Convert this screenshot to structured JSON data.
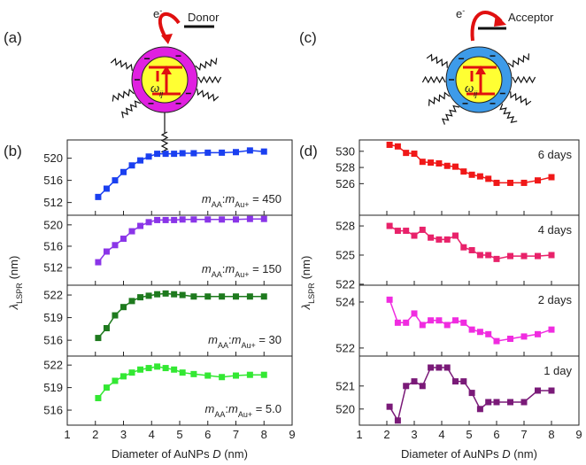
{
  "panel_labels": [
    "(a)",
    "(b)",
    "(c)",
    "(d)"
  ],
  "schematics": {
    "electron": "e",
    "charge": "-",
    "donor": "Donor",
    "acceptor": "Acceptor",
    "freq": "ω",
    "freq_sub": "ij"
  },
  "chart_data": [
    {
      "type": "line",
      "xlabel": [
        "Diameter of AuNPs ",
        "D",
        " (nm)"
      ],
      "ylabel": [
        "λ",
        "LSPR",
        "(nm)"
      ],
      "xlim": [
        1,
        9
      ],
      "xticks": [
        1,
        2,
        3,
        4,
        5,
        6,
        7,
        8,
        9
      ],
      "subplots": [
        {
          "x": [
            2.1,
            2.4,
            2.7,
            3.0,
            3.3,
            3.6,
            3.9,
            4.2,
            4.5,
            4.8,
            5.1,
            5.5,
            6.0,
            6.5,
            7.0,
            7.5,
            8.0
          ],
          "values": [
            513.0,
            514.5,
            516.0,
            517.5,
            518.7,
            519.6,
            520.3,
            520.8,
            520.8,
            520.8,
            520.9,
            520.9,
            521.0,
            521.0,
            521.1,
            521.4,
            521.2
          ],
          "color": "#1a3ff0",
          "ylim": [
            509.7,
            523.3
          ],
          "yticks": [
            512,
            516,
            520
          ],
          "annotation": [
            "m",
            "AA",
            ":",
            "m",
            "Au+",
            " = 450"
          ]
        },
        {
          "x": [
            2.1,
            2.4,
            2.7,
            3.0,
            3.3,
            3.6,
            3.9,
            4.2,
            4.5,
            4.8,
            5.1,
            5.5,
            6.0,
            6.5,
            7.0,
            7.5,
            8.0
          ],
          "values": [
            513.0,
            515.0,
            516.2,
            517.4,
            518.8,
            519.8,
            520.5,
            520.9,
            520.9,
            520.9,
            521.0,
            521.0,
            521.0,
            521.0,
            521.0,
            521.1,
            521.1
          ],
          "color": "#8a35e8",
          "ylim": [
            508.7,
            521.8
          ],
          "yticks": [
            512,
            516,
            520
          ],
          "annotation": [
            "m",
            "AA",
            ":",
            "m",
            "Au+",
            " = 150"
          ]
        },
        {
          "x": [
            2.1,
            2.4,
            2.7,
            3.0,
            3.3,
            3.6,
            3.9,
            4.2,
            4.5,
            4.8,
            5.1,
            5.5,
            6.0,
            6.5,
            7.0,
            7.5,
            8.0
          ],
          "values": [
            516.3,
            517.6,
            519.3,
            520.4,
            521.2,
            521.7,
            521.9,
            522.1,
            522.2,
            522.1,
            522.0,
            521.8,
            521.8,
            521.8,
            521.8,
            521.8,
            521.8
          ],
          "color": "#1e7a1e",
          "ylim": [
            513.9,
            523.3
          ],
          "yticks": [
            516,
            519,
            522
          ],
          "annotation": [
            "m",
            "AA",
            ":",
            "m",
            "Au+",
            " = 30"
          ]
        },
        {
          "x": [
            2.1,
            2.4,
            2.7,
            3.0,
            3.3,
            3.6,
            3.9,
            4.2,
            4.5,
            4.8,
            5.1,
            5.5,
            6.0,
            6.5,
            7.0,
            7.5,
            8.0
          ],
          "values": [
            517.6,
            519.0,
            519.9,
            520.5,
            521.0,
            521.4,
            521.6,
            521.8,
            521.6,
            521.4,
            521.0,
            520.8,
            520.6,
            520.4,
            520.6,
            520.7,
            520.7
          ],
          "color": "#33e833",
          "ylim": [
            514.0,
            523.2
          ],
          "yticks": [
            516,
            519,
            522
          ],
          "annotation": [
            "m",
            "AA",
            ":",
            "m",
            "Au+",
            " = 5.0"
          ]
        }
      ]
    },
    {
      "type": "line",
      "xlabel": [
        "Diameter of AuNPs ",
        "D",
        " (nm)"
      ],
      "ylabel": [
        "λ",
        "LSPR",
        "(nm)"
      ],
      "xlim": [
        1,
        9
      ],
      "xticks": [
        1,
        2,
        3,
        4,
        5,
        6,
        7,
        8,
        9
      ],
      "subplots": [
        {
          "x": [
            2.1,
            2.4,
            2.7,
            3.0,
            3.3,
            3.6,
            3.9,
            4.2,
            4.5,
            4.8,
            5.1,
            5.4,
            5.7,
            6.0,
            6.5,
            7.0,
            7.5,
            8.0
          ],
          "values": [
            530.8,
            530.6,
            529.8,
            529.7,
            528.7,
            528.6,
            528.5,
            528.2,
            528.1,
            527.5,
            527.1,
            526.9,
            526.6,
            526.1,
            526.1,
            526.1,
            526.4,
            526.8
          ],
          "color": "#f01818",
          "ylim": [
            522.1,
            531.4
          ],
          "yticks": [
            526,
            528,
            530
          ],
          "annotation": [
            "6 days"
          ]
        },
        {
          "x": [
            2.1,
            2.4,
            2.7,
            3.0,
            3.3,
            3.6,
            3.9,
            4.2,
            4.5,
            4.8,
            5.1,
            5.4,
            5.7,
            6.0,
            6.5,
            7.0,
            7.5,
            8.0
          ],
          "values": [
            528.0,
            527.5,
            527.5,
            527.0,
            527.6,
            526.8,
            526.6,
            526.6,
            527.0,
            525.8,
            525.5,
            525.0,
            525.0,
            524.6,
            524.9,
            524.9,
            524.9,
            525.0
          ],
          "color": "#e8226a",
          "ylim": [
            521.9,
            529.1
          ],
          "yticks": [
            522,
            525,
            528
          ],
          "annotation": [
            "4 days"
          ]
        },
        {
          "x": [
            2.1,
            2.4,
            2.7,
            3.0,
            3.3,
            3.6,
            3.9,
            4.2,
            4.5,
            4.8,
            5.1,
            5.4,
            5.7,
            6.0,
            6.5,
            7.0,
            7.5,
            8.0
          ],
          "values": [
            524.1,
            523.1,
            523.1,
            523.5,
            523.0,
            523.2,
            523.2,
            523.0,
            523.2,
            523.1,
            522.8,
            522.7,
            522.6,
            522.3,
            522.4,
            522.5,
            522.6,
            522.8
          ],
          "color": "#f02ce0",
          "ylim": [
            521.65,
            524.73
          ],
          "yticks": [
            522,
            524
          ],
          "annotation": [
            "2 days"
          ]
        },
        {
          "x": [
            2.1,
            2.4,
            2.7,
            3.0,
            3.3,
            3.6,
            3.9,
            4.2,
            4.5,
            4.8,
            5.1,
            5.4,
            5.7,
            6.0,
            6.5,
            7.0,
            7.5,
            8.0
          ],
          "values": [
            520.1,
            519.5,
            521.0,
            521.2,
            521.0,
            521.8,
            521.8,
            521.8,
            521.2,
            521.2,
            520.7,
            520.0,
            520.3,
            520.3,
            520.3,
            520.3,
            520.8,
            520.8
          ],
          "color": "#7a1a78",
          "ylim": [
            519.3,
            522.3
          ],
          "yticks": [
            520,
            521
          ],
          "annotation": [
            "1 day"
          ]
        }
      ]
    }
  ]
}
